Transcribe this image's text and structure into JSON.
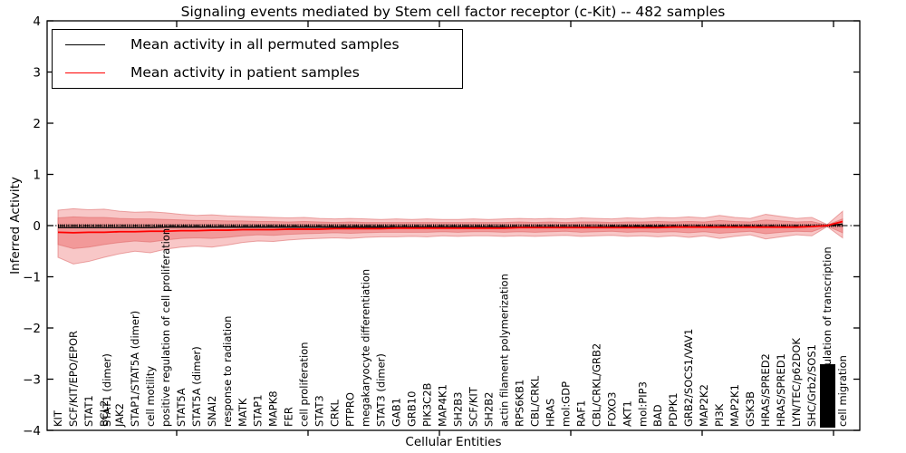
{
  "chart_data": {
    "type": "line",
    "title": "Signaling events mediated by Stem cell factor receptor (c-Kit) -- 482 samples",
    "xlabel": "Cellular Entities",
    "ylabel": "Inferred Activity",
    "ylim": [
      -4,
      4
    ],
    "yticks": [
      4,
      3,
      2,
      1,
      0,
      -1,
      -2,
      -3,
      -4
    ],
    "ytick_labels": [
      "4",
      "3",
      "2",
      "1",
      "0",
      "−1",
      "−2",
      "−3",
      "−4"
    ],
    "grid": false,
    "zero_line_style": "dash-dot with dense sample tick markers",
    "legend_position": "upper left",
    "legend": [
      {
        "label": "Mean activity in all permuted samples",
        "color": "#000000"
      },
      {
        "label": "Mean activity in patient samples",
        "color": "#ff0000"
      }
    ],
    "colors": {
      "band": "#e85050",
      "band_edge": "#dd6666",
      "band_outer_alpha": 0.32,
      "band_inner_alpha": 0.38,
      "permuted_line": "#000000",
      "patient_line": "#ff0000",
      "axis": "#000000",
      "overlap_blob": "#000000"
    },
    "entities": [
      {
        "label": "KIT"
      },
      {
        "label": "SCF/KIT/EPO/EPOR"
      },
      {
        "label": "STAT1"
      },
      {
        "label": "BCL2",
        "overlap_label": "STAT1 (dimer)"
      },
      {
        "label": "JAK2"
      },
      {
        "label": "STAP1/STAT5A (dimer)"
      },
      {
        "label": "cell motility"
      },
      {
        "label": "positive regulation of cell proliferation"
      },
      {
        "label": "STAT5A"
      },
      {
        "label": "STAT5A (dimer)"
      },
      {
        "label": "SNAI2"
      },
      {
        "label": "response to radiation"
      },
      {
        "label": "MATK"
      },
      {
        "label": "STAP1"
      },
      {
        "label": "MAPK8"
      },
      {
        "label": "FER"
      },
      {
        "label": "cell proliferation"
      },
      {
        "label": "STAT3"
      },
      {
        "label": "CRKL"
      },
      {
        "label": "PTPRO"
      },
      {
        "label": "megakaryocyte differentiation"
      },
      {
        "label": "STAT3 (dimer)"
      },
      {
        "label": "GAB1"
      },
      {
        "label": "GRB10"
      },
      {
        "label": "PIK3C2B"
      },
      {
        "label": "MAP4K1"
      },
      {
        "label": "SH2B3"
      },
      {
        "label": "SCF/KIT"
      },
      {
        "label": "SH2B2"
      },
      {
        "label": "actin filament polymerization"
      },
      {
        "label": "RPS6KB1"
      },
      {
        "label": "CBL/CRKL"
      },
      {
        "label": "HRAS"
      },
      {
        "label": "mol:GDP"
      },
      {
        "label": "RAF1"
      },
      {
        "label": "CBL/CRKL/GRB2"
      },
      {
        "label": "FOXO3"
      },
      {
        "label": "AKT1"
      },
      {
        "label": "mol:PIP3"
      },
      {
        "label": "BAD"
      },
      {
        "label": "PDPK1"
      },
      {
        "label": "GRB2/SOCS1/VAV1"
      },
      {
        "label": "MAP2K2"
      },
      {
        "label": "PI3K"
      },
      {
        "label": "MAP2K1"
      },
      {
        "label": "GSK3B"
      },
      {
        "label": "HRAS/SPRED2"
      },
      {
        "label": "HRAS/SPRED1"
      },
      {
        "label": "LYN/TEC/p62DOK"
      },
      {
        "label": "SHC/Grb2/SOS1"
      },
      {
        "label": "positive regulation of transcription",
        "blob": true
      },
      {
        "label": "cell migration"
      }
    ],
    "series": [
      {
        "name": "Mean activity in all permuted samples",
        "values": [
          -0.04,
          -0.04,
          -0.04,
          -0.04,
          -0.04,
          -0.04,
          -0.04,
          -0.03,
          -0.03,
          -0.03,
          -0.03,
          -0.03,
          -0.03,
          -0.03,
          -0.03,
          -0.03,
          -0.03,
          -0.03,
          -0.03,
          -0.03,
          -0.03,
          -0.03,
          -0.03,
          -0.03,
          -0.03,
          -0.03,
          -0.03,
          -0.03,
          -0.03,
          -0.03,
          -0.03,
          -0.03,
          -0.03,
          -0.03,
          -0.03,
          -0.03,
          -0.02,
          -0.02,
          -0.02,
          -0.02,
          -0.02,
          -0.02,
          -0.02,
          -0.02,
          -0.02,
          -0.02,
          -0.02,
          -0.02,
          -0.02,
          -0.02,
          0.0,
          0.03
        ]
      },
      {
        "name": "Mean activity in patient samples",
        "values": [
          -0.13,
          -0.14,
          -0.13,
          -0.13,
          -0.12,
          -0.12,
          -0.11,
          -0.11,
          -0.1,
          -0.1,
          -0.09,
          -0.09,
          -0.08,
          -0.08,
          -0.08,
          -0.07,
          -0.07,
          -0.07,
          -0.06,
          -0.06,
          -0.06,
          -0.06,
          -0.05,
          -0.05,
          -0.05,
          -0.05,
          -0.05,
          -0.05,
          -0.05,
          -0.05,
          -0.04,
          -0.04,
          -0.04,
          -0.04,
          -0.04,
          -0.04,
          -0.04,
          -0.04,
          -0.04,
          -0.04,
          -0.03,
          -0.03,
          -0.03,
          -0.03,
          -0.03,
          -0.03,
          -0.03,
          -0.03,
          -0.03,
          -0.02,
          0.0,
          0.08
        ]
      }
    ],
    "bands": {
      "outer_top": [
        0.3,
        0.33,
        0.31,
        0.32,
        0.28,
        0.26,
        0.27,
        0.25,
        0.22,
        0.2,
        0.21,
        0.19,
        0.18,
        0.17,
        0.16,
        0.15,
        0.16,
        0.14,
        0.13,
        0.14,
        0.13,
        0.12,
        0.13,
        0.12,
        0.13,
        0.12,
        0.12,
        0.13,
        0.12,
        0.13,
        0.14,
        0.13,
        0.14,
        0.13,
        0.15,
        0.14,
        0.13,
        0.15,
        0.14,
        0.16,
        0.15,
        0.17,
        0.15,
        0.2,
        0.16,
        0.14,
        0.22,
        0.18,
        0.14,
        0.16,
        0.02,
        0.28
      ],
      "outer_bottom": [
        -0.62,
        -0.75,
        -0.7,
        -0.62,
        -0.55,
        -0.5,
        -0.53,
        -0.46,
        -0.42,
        -0.4,
        -0.42,
        -0.38,
        -0.33,
        -0.3,
        -0.31,
        -0.28,
        -0.26,
        -0.25,
        -0.24,
        -0.25,
        -0.23,
        -0.22,
        -0.22,
        -0.21,
        -0.22,
        -0.2,
        -0.21,
        -0.2,
        -0.2,
        -0.21,
        -0.2,
        -0.21,
        -0.2,
        -0.19,
        -0.21,
        -0.2,
        -0.19,
        -0.21,
        -0.2,
        -0.22,
        -0.2,
        -0.23,
        -0.2,
        -0.25,
        -0.21,
        -0.18,
        -0.26,
        -0.22,
        -0.18,
        -0.2,
        -0.02,
        -0.24
      ],
      "inner_top": [
        0.15,
        0.17,
        0.16,
        0.16,
        0.14,
        0.13,
        0.13,
        0.12,
        0.11,
        0.1,
        0.1,
        0.09,
        0.09,
        0.08,
        0.08,
        0.07,
        0.08,
        0.07,
        0.06,
        0.07,
        0.06,
        0.06,
        0.06,
        0.06,
        0.06,
        0.06,
        0.06,
        0.06,
        0.06,
        0.06,
        0.07,
        0.06,
        0.07,
        0.06,
        0.07,
        0.07,
        0.06,
        0.07,
        0.07,
        0.08,
        0.07,
        0.08,
        0.07,
        0.1,
        0.08,
        0.07,
        0.11,
        0.09,
        0.07,
        0.08,
        0.01,
        0.13
      ],
      "inner_bottom": [
        -0.37,
        -0.45,
        -0.42,
        -0.37,
        -0.33,
        -0.3,
        -0.32,
        -0.28,
        -0.25,
        -0.24,
        -0.25,
        -0.23,
        -0.2,
        -0.18,
        -0.19,
        -0.17,
        -0.16,
        -0.15,
        -0.14,
        -0.15,
        -0.14,
        -0.13,
        -0.13,
        -0.13,
        -0.13,
        -0.12,
        -0.13,
        -0.12,
        -0.12,
        -0.13,
        -0.12,
        -0.13,
        -0.12,
        -0.11,
        -0.13,
        -0.12,
        -0.11,
        -0.13,
        -0.12,
        -0.13,
        -0.12,
        -0.14,
        -0.12,
        -0.15,
        -0.13,
        -0.11,
        -0.16,
        -0.13,
        -0.11,
        -0.12,
        -0.01,
        -0.14
      ]
    }
  }
}
